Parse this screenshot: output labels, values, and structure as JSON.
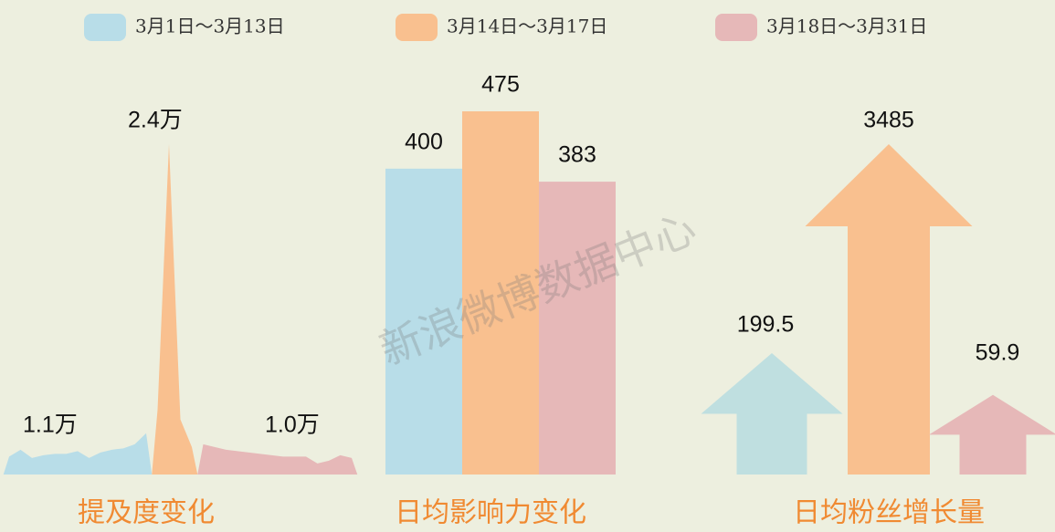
{
  "watermark": "新浪微博数据中心",
  "chart_data": [
    {
      "type": "area",
      "title": "提及度变化",
      "x": [
        1,
        2,
        3,
        4,
        5,
        6,
        7,
        8,
        9,
        10,
        11,
        12,
        13,
        14,
        15,
        16,
        17,
        18,
        19,
        20,
        21,
        22,
        23,
        24,
        25,
        26,
        27,
        28,
        29,
        30,
        31
      ],
      "series": [
        {
          "name": "3月1日～3月13日",
          "color": "#b8dde8",
          "values": [
            0.13,
            0.18,
            0.12,
            0.14,
            0.15,
            0.15,
            0.17,
            0.12,
            0.16,
            0.18,
            0.19,
            0.22,
            0.3,
            null,
            null,
            null,
            null,
            null,
            null,
            null,
            null,
            null,
            null,
            null,
            null,
            null,
            null,
            null,
            null,
            null,
            null
          ]
        },
        {
          "name": "3月14日～3月17日",
          "color": "#f9c08f",
          "values": [
            null,
            null,
            null,
            null,
            null,
            null,
            null,
            null,
            null,
            null,
            null,
            null,
            null,
            0.47,
            2.4,
            0.4,
            0.2,
            null,
            null,
            null,
            null,
            null,
            null,
            null,
            null,
            null,
            null,
            null,
            null,
            null,
            null
          ]
        },
        {
          "name": "3月18日～3月31日",
          "color": "#e6b8b8",
          "values": [
            null,
            null,
            null,
            null,
            null,
            null,
            null,
            null,
            null,
            null,
            null,
            null,
            null,
            null,
            null,
            null,
            null,
            0.22,
            0.2,
            0.18,
            0.17,
            0.16,
            0.15,
            0.14,
            0.13,
            0.13,
            0.13,
            0.08,
            0.1,
            0.14,
            0.12
          ]
        }
      ],
      "annotations": [
        "1.1万",
        "2.4万",
        "1.0万"
      ]
    },
    {
      "type": "bar",
      "title": "日均影响力变化",
      "series": [
        {
          "name": "3月1日～3月13日",
          "color": "#b8dde8",
          "values": [
            400
          ]
        },
        {
          "name": "3月14日～3月17日",
          "color": "#f9c08f",
          "values": [
            475
          ]
        },
        {
          "name": "3月18日～3月31日",
          "color": "#e6b8b8",
          "values": [
            383
          ]
        }
      ]
    },
    {
      "type": "arrow",
      "title": "日均粉丝增长量",
      "series": [
        {
          "name": "3月1日～3月13日",
          "color": "#bfdfe0",
          "values": [
            199.5
          ]
        },
        {
          "name": "3月14日～3月17日",
          "color": "#f9c08f",
          "values": [
            3485
          ]
        },
        {
          "name": "3月18日～3月31日",
          "color": "#e6b8b8",
          "values": [
            59.9
          ]
        }
      ]
    }
  ]
}
